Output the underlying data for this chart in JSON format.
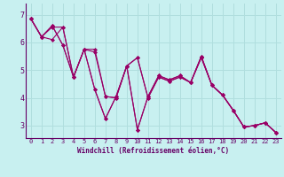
{
  "xlabel": "Windchill (Refroidissement éolien,°C)",
  "bg_color": "#c8f0f0",
  "line_color": "#990066",
  "grid_color": "#b0dede",
  "axis_color": "#660066",
  "spine_color": "#660066",
  "x_ticks": [
    0,
    1,
    2,
    3,
    4,
    5,
    6,
    7,
    8,
    9,
    10,
    11,
    12,
    13,
    14,
    15,
    16,
    17,
    18,
    19,
    20,
    21,
    22,
    23
  ],
  "y_ticks": [
    3,
    4,
    5,
    6,
    7
  ],
  "xlim": [
    -0.5,
    23.5
  ],
  "ylim": [
    2.55,
    7.4
  ],
  "series": [
    [
      6.85,
      6.2,
      6.1,
      6.55,
      4.75,
      5.75,
      5.75,
      4.05,
      4.0,
      5.15,
      5.45,
      4.0,
      4.75,
      4.6,
      4.75,
      4.55,
      5.45,
      4.45,
      4.1,
      3.55,
      2.95,
      3.0,
      3.1,
      2.75
    ],
    [
      6.85,
      6.2,
      6.6,
      5.9,
      4.75,
      5.75,
      4.3,
      3.25,
      4.05,
      5.15,
      2.85,
      4.05,
      4.8,
      4.65,
      4.8,
      4.55,
      5.5,
      4.45,
      4.1,
      3.55,
      2.95,
      3.0,
      3.1,
      2.75
    ],
    [
      6.85,
      6.2,
      6.55,
      6.55,
      4.75,
      5.75,
      5.65,
      4.05,
      4.0,
      5.15,
      5.45,
      4.0,
      4.75,
      4.6,
      4.75,
      4.55,
      5.45,
      4.45,
      4.1,
      3.55,
      2.95,
      3.0,
      3.1,
      2.75
    ],
    [
      6.85,
      6.2,
      6.6,
      5.9,
      4.75,
      5.75,
      4.3,
      3.25,
      4.05,
      5.15,
      2.85,
      4.05,
      4.8,
      4.65,
      4.8,
      4.55,
      5.5,
      4.45,
      4.1,
      3.55,
      2.95,
      3.0,
      3.1,
      2.75
    ]
  ],
  "marker": "D",
  "marker_size": 2,
  "line_width": 0.8,
  "tick_fontsize": 5,
  "xlabel_fontsize": 5.5
}
